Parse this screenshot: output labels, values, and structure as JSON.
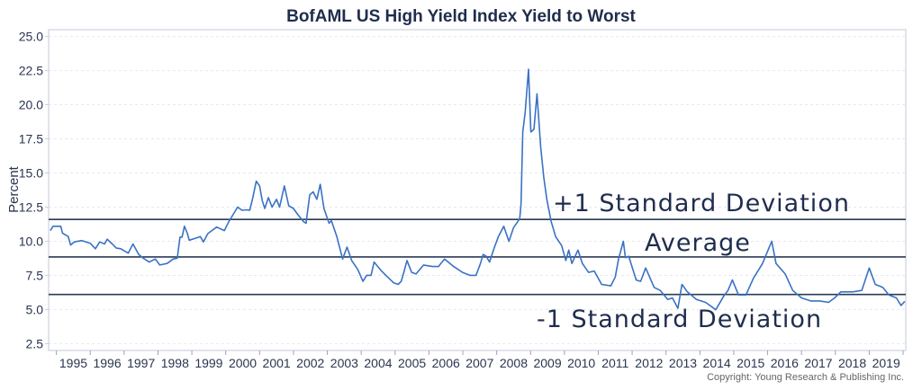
{
  "chart_data": {
    "type": "line",
    "title": "BofAML US High Yield Index Yield to Worst",
    "xlabel": "",
    "ylabel": "Percent",
    "xlim": [
      1994.77,
      2020.08
    ],
    "ylim": [
      2.0,
      25.5
    ],
    "yticks": [
      "2.5",
      "5.0",
      "7.5",
      "10.0",
      "12.5",
      "15.0",
      "17.5",
      "20.0",
      "22.5",
      "25.0"
    ],
    "xticks": [
      "1995",
      "1996",
      "1997",
      "1998",
      "1999",
      "2000",
      "2001",
      "2002",
      "2003",
      "2004",
      "2005",
      "2006",
      "2007",
      "2008",
      "2009",
      "2010",
      "2011",
      "2012",
      "2013",
      "2014",
      "2015",
      "2016",
      "2017",
      "2018",
      "2019"
    ],
    "grid": true,
    "line_color": "#3a72c4",
    "reference_color": "#2b3a55",
    "series": [
      {
        "x": [
          1994.82,
          1994.9,
          1995.0,
          1995.13,
          1995.18,
          1995.35,
          1995.42,
          1995.53,
          1995.75,
          1996.0,
          1996.15,
          1996.28,
          1996.42,
          1996.5,
          1996.65,
          1996.77,
          1996.9,
          1997.12,
          1997.26,
          1997.43,
          1997.6,
          1997.74,
          1997.92,
          1998.05,
          1998.27,
          1998.45,
          1998.57,
          1998.65,
          1998.71,
          1998.78,
          1998.87,
          1998.92,
          1999.12,
          1999.25,
          1999.34,
          1999.47,
          1999.73,
          1999.96,
          2000.09,
          2000.35,
          2000.48,
          2000.62,
          2000.71,
          2000.8,
          2000.9,
          2001.0,
          2001.08,
          2001.15,
          2001.26,
          2001.37,
          2001.5,
          2001.59,
          2001.73,
          2001.86,
          2002.0,
          2002.12,
          2002.3,
          2002.37,
          2002.48,
          2002.58,
          2002.69,
          2002.79,
          2002.9,
          2003.05,
          2003.12,
          2003.28,
          2003.45,
          2003.58,
          2003.72,
          2003.9,
          2004.05,
          2004.16,
          2004.29,
          2004.38,
          2004.6,
          2004.78,
          2004.96,
          2005.09,
          2005.18,
          2005.27,
          2005.35,
          2005.49,
          2005.62,
          2005.84,
          2006.1,
          2006.28,
          2006.46,
          2006.73,
          2006.99,
          2007.21,
          2007.39,
          2007.52,
          2007.6,
          2007.69,
          2007.79,
          2007.92,
          2008.05,
          2008.21,
          2008.36,
          2008.5,
          2008.68,
          2008.72,
          2008.77,
          2008.84,
          2008.94,
          2009.01,
          2009.1,
          2009.19,
          2009.3,
          2009.39,
          2009.48,
          2009.61,
          2009.74,
          2009.92,
          2010.04,
          2010.13,
          2010.22,
          2010.4,
          2010.53,
          2010.71,
          2010.88,
          2011.1,
          2011.37,
          2011.5,
          2011.6,
          2011.74,
          2011.8,
          2011.9,
          2012.12,
          2012.25,
          2012.4,
          2012.65,
          2012.83,
          2013.05,
          2013.19,
          2013.35,
          2013.47,
          2013.63,
          2013.9,
          2014.17,
          2014.47,
          2014.7,
          2014.83,
          2014.96,
          2015.14,
          2015.36,
          2015.58,
          2015.85,
          2016.03,
          2016.12,
          2016.25,
          2016.52,
          2016.74,
          2017.0,
          2017.27,
          2017.54,
          2017.8,
          2017.98,
          2018.16,
          2018.51,
          2018.78,
          2019.0,
          2019.18,
          2019.4,
          2019.58,
          2019.8,
          2019.94,
          2020.05
        ],
        "values": [
          10.78,
          11.1,
          11.1,
          11.1,
          10.6,
          10.35,
          9.73,
          9.95,
          10.05,
          9.85,
          9.45,
          9.95,
          9.8,
          10.15,
          9.8,
          9.5,
          9.45,
          9.13,
          9.8,
          9.03,
          8.7,
          8.48,
          8.7,
          8.26,
          8.37,
          8.7,
          8.76,
          10.3,
          10.3,
          11.1,
          10.56,
          10.08,
          10.23,
          10.34,
          9.95,
          10.56,
          11.04,
          10.78,
          11.43,
          12.5,
          12.27,
          12.3,
          12.27,
          13.2,
          14.4,
          14.05,
          12.97,
          12.4,
          13.2,
          12.5,
          13.07,
          12.5,
          14.05,
          12.6,
          12.4,
          11.98,
          11.43,
          11.32,
          13.4,
          13.62,
          13.07,
          14.17,
          12.4,
          11.32,
          11.5,
          10.34,
          8.7,
          9.57,
          8.59,
          7.93,
          7.06,
          7.5,
          7.5,
          8.48,
          7.82,
          7.38,
          6.95,
          6.84,
          7.06,
          7.82,
          8.59,
          7.72,
          7.6,
          8.26,
          8.15,
          8.15,
          8.7,
          8.15,
          7.72,
          7.5,
          7.5,
          8.37,
          9.03,
          8.9,
          8.48,
          9.46,
          10.34,
          11.1,
          10.0,
          11.0,
          11.65,
          12.75,
          18.0,
          19.4,
          22.6,
          18.0,
          18.2,
          20.8,
          16.9,
          14.7,
          13.07,
          11.43,
          10.34,
          9.68,
          8.59,
          9.35,
          8.37,
          9.35,
          8.37,
          7.72,
          7.82,
          6.84,
          6.73,
          7.38,
          8.7,
          10.0,
          8.8,
          8.9,
          7.16,
          7.06,
          8.04,
          6.62,
          6.4,
          5.74,
          5.85,
          5.09,
          6.84,
          6.29,
          5.74,
          5.52,
          4.98,
          5.96,
          6.4,
          7.16,
          6.07,
          6.07,
          7.28,
          8.37,
          9.46,
          10.0,
          8.37,
          7.6,
          6.4,
          5.85,
          5.63,
          5.63,
          5.52,
          5.85,
          6.29,
          6.29,
          6.4,
          8.04,
          6.84,
          6.62,
          6.07,
          5.85,
          5.3,
          5.6
        ]
      }
    ],
    "reference_lines": [
      {
        "label": "+1 Standard Deviation",
        "value": 11.6
      },
      {
        "label": "Average",
        "value": 8.85
      },
      {
        "label": "-1 Standard Deviation",
        "value": 6.1
      }
    ],
    "copyright": "Copyright: Young Research & Publishing Inc."
  }
}
